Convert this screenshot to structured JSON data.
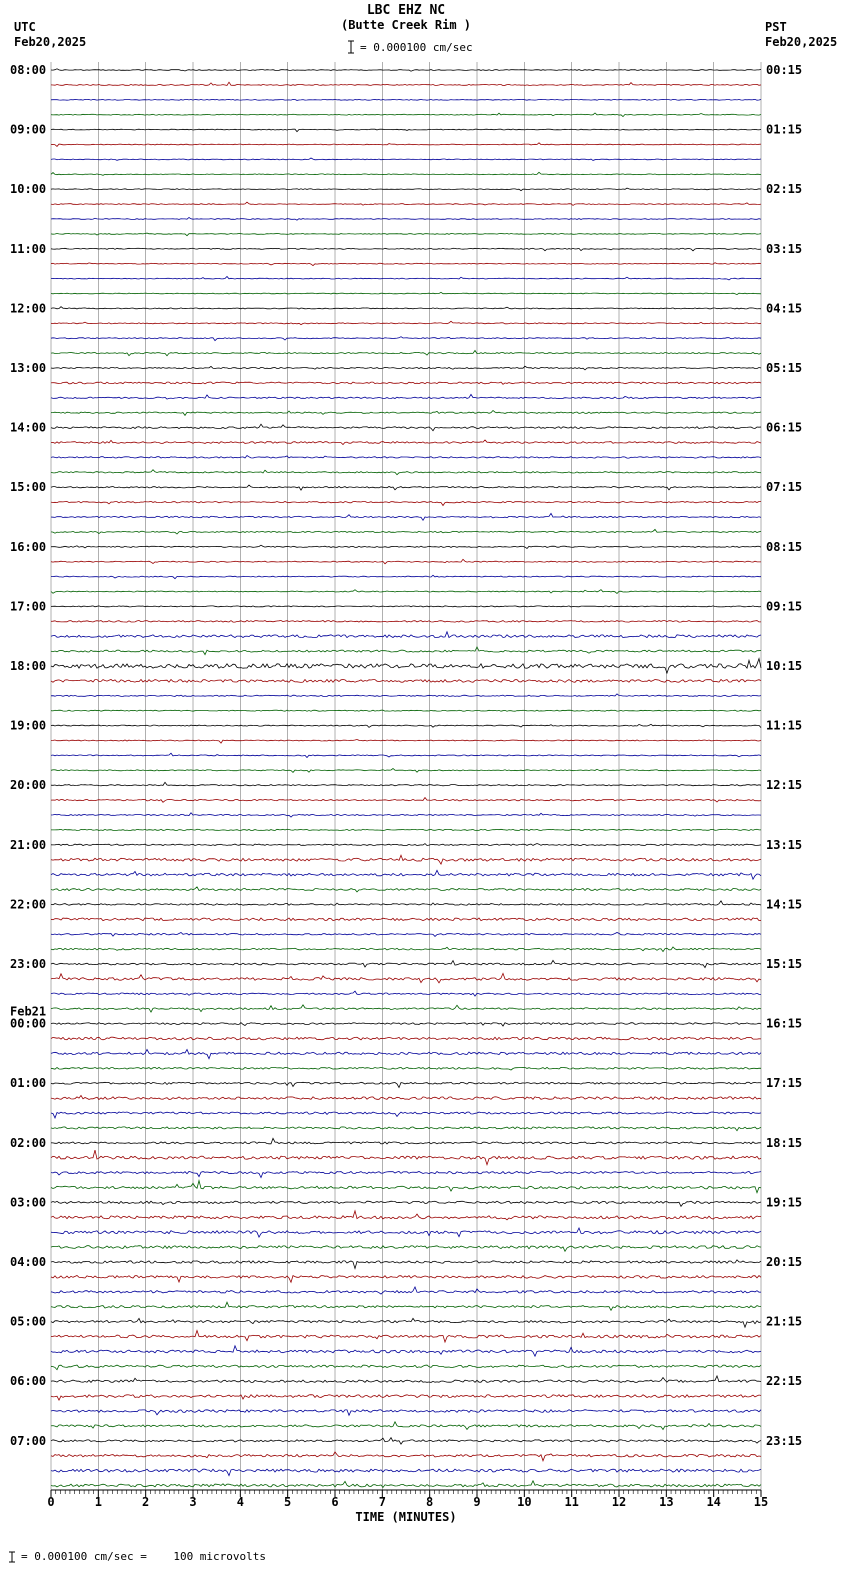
{
  "header": {
    "station": "LBC EHZ NC",
    "location": "(Butte Creek Rim )",
    "left_tz": "UTC",
    "left_date": "Feb20,2025",
    "right_tz": "PST",
    "right_date": "Feb20,2025",
    "scale_label": "= 0.000100 cm/sec"
  },
  "footer": {
    "scale_note": "= 0.000100 cm/sec =    100 microvolts"
  },
  "chart_data": {
    "type": "line",
    "title": "LBC EHZ NC (Butte Creek Rim ) helicorder",
    "xlabel": "TIME (MINUTES)",
    "x_range": [
      0,
      15
    ],
    "x_ticks": [
      "0",
      "1",
      "2",
      "3",
      "4",
      "5",
      "6",
      "7",
      "8",
      "9",
      "10",
      "11",
      "12",
      "13",
      "14",
      "15"
    ],
    "rows_per_hour": 4,
    "minutes_per_row": 15,
    "trace_colors": [
      "#000000",
      "#990000",
      "#000099",
      "#006000"
    ],
    "grid_color": "#606060",
    "amp_units": "approx peak noise amplitude in px (relative trace intensity)",
    "hours": [
      {
        "utc": "08:00",
        "pst": "00:15",
        "amps": [
          0.4,
          0.5,
          0.4,
          0.4
        ]
      },
      {
        "utc": "09:00",
        "pst": "01:15",
        "amps": [
          0.4,
          0.4,
          0.4,
          0.4
        ]
      },
      {
        "utc": "10:00",
        "pst": "02:15",
        "amps": [
          0.4,
          0.4,
          0.4,
          0.4
        ]
      },
      {
        "utc": "11:00",
        "pst": "03:15",
        "amps": [
          0.5,
          0.4,
          0.4,
          0.4
        ]
      },
      {
        "utc": "12:00",
        "pst": "04:15",
        "amps": [
          0.5,
          0.5,
          0.5,
          0.6
        ]
      },
      {
        "utc": "13:00",
        "pst": "05:15",
        "amps": [
          0.6,
          0.9,
          0.7,
          0.7
        ]
      },
      {
        "utc": "14:00",
        "pst": "06:15",
        "amps": [
          0.9,
          0.9,
          0.7,
          0.7
        ]
      },
      {
        "utc": "15:00",
        "pst": "07:15",
        "amps": [
          0.7,
          0.7,
          0.7,
          0.6
        ]
      },
      {
        "utc": "16:00",
        "pst": "08:15",
        "amps": [
          0.6,
          0.5,
          0.5,
          0.5
        ]
      },
      {
        "utc": "17:00",
        "pst": "09:15",
        "amps": [
          0.5,
          0.8,
          1.4,
          1.0
        ]
      },
      {
        "utc": "18:00",
        "pst": "10:15",
        "amps": [
          2.2,
          1.4,
          0.6,
          0.5
        ]
      },
      {
        "utc": "19:00",
        "pst": "11:15",
        "amps": [
          0.5,
          0.5,
          0.5,
          0.5
        ]
      },
      {
        "utc": "20:00",
        "pst": "12:15",
        "amps": [
          0.6,
          0.7,
          0.6,
          0.6
        ]
      },
      {
        "utc": "21:00",
        "pst": "13:15",
        "amps": [
          0.7,
          1.4,
          1.3,
          1.0
        ]
      },
      {
        "utc": "22:00",
        "pst": "14:15",
        "amps": [
          0.8,
          1.3,
          0.8,
          0.8
        ]
      },
      {
        "utc": "23:00",
        "pst": "15:15",
        "amps": [
          0.9,
          1.3,
          0.8,
          0.9
        ]
      },
      {
        "utc": "00:00",
        "pst": "16:15",
        "date": "Feb21",
        "amps": [
          0.9,
          1.3,
          1.2,
          0.9
        ]
      },
      {
        "utc": "01:00",
        "pst": "17:15",
        "amps": [
          0.9,
          1.3,
          1.0,
          1.0
        ]
      },
      {
        "utc": "02:00",
        "pst": "18:15",
        "amps": [
          1.0,
          1.5,
          1.1,
          1.3
        ]
      },
      {
        "utc": "03:00",
        "pst": "19:15",
        "amps": [
          1.2,
          1.5,
          1.5,
          1.4
        ]
      },
      {
        "utc": "04:00",
        "pst": "20:15",
        "amps": [
          1.2,
          1.3,
          1.2,
          1.2
        ]
      },
      {
        "utc": "05:00",
        "pst": "21:15",
        "amps": [
          1.1,
          1.4,
          1.4,
          1.2
        ]
      },
      {
        "utc": "06:00",
        "pst": "22:15",
        "amps": [
          1.2,
          1.4,
          1.3,
          1.1
        ]
      },
      {
        "utc": "07:00",
        "pst": "23:15",
        "amps": [
          1.0,
          1.2,
          1.5,
          1.4
        ]
      }
    ]
  }
}
